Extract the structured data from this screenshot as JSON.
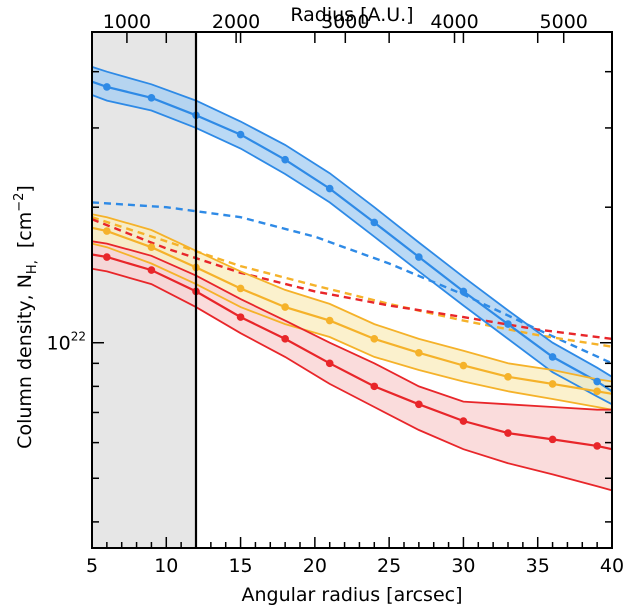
{
  "chart_data": {
    "type": "line",
    "xlabel": "Angular radius [arcsec]",
    "ylabel": "Column density, N",
    "ylabel_sub": "H,",
    "ylabel_unit": "[cm",
    "ylabel_unit_exp": "−2",
    "ylabel_unit_close": "]",
    "xlim": [
      5,
      40
    ],
    "ylim": [
      3.5e+21,
      4.9e+22
    ],
    "yscale": "log",
    "x_ticks": [
      5,
      10,
      15,
      20,
      25,
      30,
      35,
      40
    ],
    "y_tick_label": {
      "value": 1e+22,
      "base": "10",
      "exp": "22"
    },
    "top_axis": {
      "label": "Radius [A.U.]",
      "ticks": [
        {
          "label": "1000",
          "x": 7.35
        },
        {
          "label": "2000",
          "x": 14.7
        },
        {
          "label": "3000",
          "x": 22.05
        },
        {
          "label": "4000",
          "x": 29.4
        },
        {
          "label": "5000",
          "x": 36.75
        }
      ]
    },
    "shaded_region": {
      "x_from": 5,
      "x_to": 12,
      "color": "#e6e6e6"
    },
    "vertical_line": {
      "x": 12
    },
    "series": [
      {
        "color": "#2e8ae6",
        "fill": "#a9cff3",
        "x": [
          5,
          6,
          9,
          12,
          15,
          18,
          21,
          24,
          27,
          30,
          33,
          36,
          39,
          40
        ],
        "center": [
          3.8e+22,
          3.7e+22,
          3.5e+22,
          3.2e+22,
          2.9e+22,
          2.55e+22,
          2.2e+22,
          1.85e+22,
          1.55e+22,
          1.3e+22,
          1.1e+22,
          9.3e+21,
          8.2e+21,
          7.8e+21
        ],
        "upper": [
          4.1e+22,
          4e+22,
          3.75e+22,
          3.45e+22,
          3.1e+22,
          2.75e+22,
          2.38e+22,
          2e+22,
          1.67e+22,
          1.4e+22,
          1.18e+22,
          1e+22,
          8.8e+21,
          8.4e+21
        ],
        "lower": [
          3.55e+22,
          3.45e+22,
          3.28e+22,
          3e+22,
          2.7e+22,
          2.37e+22,
          2.05e+22,
          1.72e+22,
          1.44e+22,
          1.21e+22,
          1.02e+22,
          8.6e+21,
          7.6e+21,
          7.3e+21
        ],
        "markers_x": [
          6,
          9,
          12,
          15,
          18,
          21,
          24,
          27,
          30,
          33,
          36,
          39
        ],
        "dashed": {
          "x": [
            5,
            10,
            15,
            20,
            25,
            30,
            35,
            40
          ],
          "y": [
            2.05e+22,
            2e+22,
            1.9e+22,
            1.72e+22,
            1.5e+22,
            1.28e+22,
            1.07e+22,
            9e+21
          ]
        }
      },
      {
        "color": "#f5b22a",
        "fill": "#faeec0",
        "x": [
          5,
          6,
          9,
          12,
          15,
          18,
          21,
          24,
          27,
          30,
          33,
          36,
          39,
          40
        ],
        "center": [
          1.8e+22,
          1.77e+22,
          1.63e+22,
          1.47e+22,
          1.32e+22,
          1.2e+22,
          1.12e+22,
          1.02e+22,
          9.5e+21,
          8.9e+21,
          8.4e+21,
          8.1e+21,
          7.8e+21,
          7.7e+21
        ],
        "upper": [
          1.93e+22,
          1.9e+22,
          1.78e+22,
          1.6e+22,
          1.44e+22,
          1.31e+22,
          1.22e+22,
          1.1e+22,
          1.02e+22,
          9.6e+21,
          9e+21,
          8.7e+21,
          8.3e+21,
          8.2e+21
        ],
        "lower": [
          1.66e+22,
          1.63e+22,
          1.5e+22,
          1.35e+22,
          1.2e+22,
          1.1e+22,
          1.03e+22,
          9.3e+21,
          8.7e+21,
          8.2e+21,
          7.8e+21,
          7.5e+21,
          7.2e+21,
          7.1e+21
        ],
        "markers_x": [
          6,
          9,
          12,
          15,
          18,
          21,
          24,
          27,
          30,
          33,
          36,
          39
        ],
        "dashed": {
          "x": [
            5,
            10,
            15,
            20,
            25,
            30,
            35,
            40
          ],
          "y": [
            1.9e+22,
            1.68e+22,
            1.48e+22,
            1.34e+22,
            1.22e+22,
            1.12e+22,
            1.04e+22,
            9.8e+21
          ]
        }
      },
      {
        "color": "#e8262a",
        "fill": "#f9d3d3",
        "x": [
          5,
          6,
          9,
          12,
          15,
          18,
          21,
          24,
          27,
          30,
          33,
          36,
          39,
          40
        ],
        "center": [
          1.57e+22,
          1.55e+22,
          1.45e+22,
          1.3e+22,
          1.14e+22,
          1.02e+22,
          9e+21,
          8e+21,
          7.3e+21,
          6.7e+21,
          6.3e+21,
          6.1e+21,
          5.9e+21,
          5.8e+21
        ],
        "upper": [
          1.68e+22,
          1.66e+22,
          1.56e+22,
          1.41e+22,
          1.25e+22,
          1.12e+22,
          1e+22,
          9e+21,
          8e+21,
          7.4e+21,
          7.3e+21,
          7.2e+21,
          7.1e+21,
          7.1e+21
        ],
        "lower": [
          1.46e+22,
          1.44e+22,
          1.35e+22,
          1.2e+22,
          1.05e+22,
          9.3e+21,
          8.1e+21,
          7.2e+21,
          6.4e+21,
          5.8e+21,
          5.4e+21,
          5.1e+21,
          4.8e+21,
          4.7e+21
        ],
        "markers_x": [
          6,
          9,
          12,
          15,
          18,
          21,
          24,
          27,
          30,
          33,
          36,
          39
        ],
        "dashed": {
          "x": [
            5,
            10,
            15,
            20,
            25,
            30,
            35,
            40
          ],
          "y": [
            1.88e+22,
            1.62e+22,
            1.43e+22,
            1.3e+22,
            1.21e+22,
            1.14e+22,
            1.07e+22,
            1.02e+22
          ]
        }
      }
    ]
  }
}
